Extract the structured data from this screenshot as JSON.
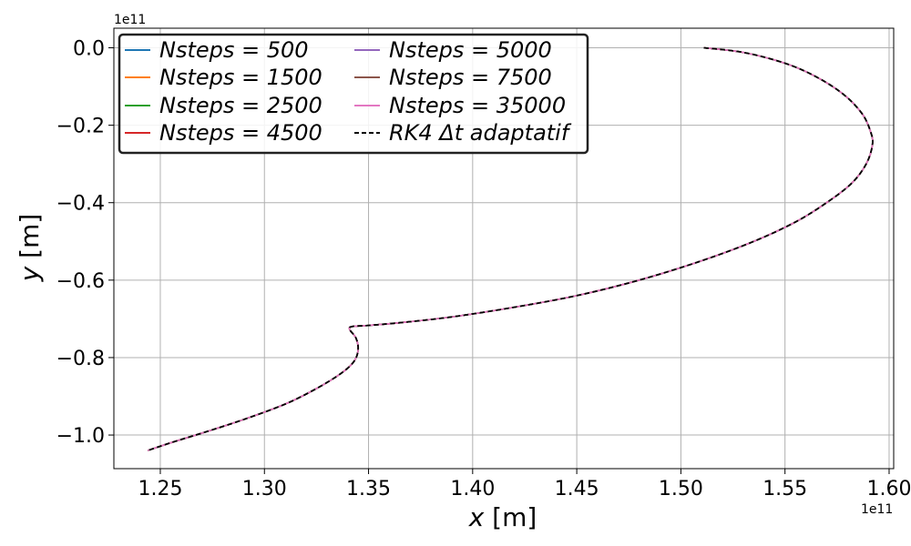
{
  "chart_data": {
    "type": "line",
    "xlabel_var": "x",
    "xlabel_unit": "[m]",
    "ylabel_var": "y",
    "ylabel_unit": "[m]",
    "x_offset_text": "1e11",
    "y_offset_text": "1e11",
    "xlim": [
      1.2277,
      1.6022
    ],
    "ylim": [
      -1.0868,
      0.0505
    ],
    "x_ticks": [
      1.25,
      1.3,
      1.35,
      1.4,
      1.45,
      1.5,
      1.55,
      1.6
    ],
    "x_tick_labels": [
      "1.25",
      "1.30",
      "1.35",
      "1.40",
      "1.45",
      "1.50",
      "1.55",
      "1.60"
    ],
    "y_ticks": [
      0.0,
      -0.2,
      -0.4,
      -0.6,
      -0.8,
      -1.0
    ],
    "y_tick_labels": [
      "0.0",
      "−0.2",
      "−0.4",
      "−0.6",
      "−0.8",
      "−1.0"
    ],
    "grid": true,
    "legend_placement": "top-left",
    "legend_columns": 2,
    "series": [
      {
        "name": "Nsteps = 500",
        "color": "#1f77b4",
        "style": "solid"
      },
      {
        "name": "Nsteps = 1500",
        "color": "#ff7f0e",
        "style": "solid"
      },
      {
        "name": "Nsteps = 2500",
        "color": "#2ca02c",
        "style": "solid"
      },
      {
        "name": "Nsteps = 4500",
        "color": "#d62728",
        "style": "solid"
      },
      {
        "name": "Nsteps = 5000",
        "color": "#9467bd",
        "style": "solid"
      },
      {
        "name": "Nsteps = 7500",
        "color": "#8c564b",
        "style": "solid"
      },
      {
        "name": "Nsteps = 35000",
        "color": "#e377c2",
        "style": "solid"
      },
      {
        "name": "RK4 Δt adaptatif",
        "color": "#000000",
        "style": "dashed"
      }
    ],
    "trajectory": {
      "x": [
        1.511,
        1.53,
        1.55,
        1.565,
        1.578,
        1.587,
        1.591,
        1.592,
        1.589,
        1.582,
        1.57,
        1.555,
        1.535,
        1.51,
        1.48,
        1.45,
        1.42,
        1.39,
        1.365,
        1.35,
        1.342,
        1.341,
        1.344,
        1.345,
        1.343,
        1.337,
        1.325,
        1.31,
        1.29,
        1.27,
        1.255,
        1.244
      ],
      "y": [
        0.0,
        -0.012,
        -0.04,
        -0.075,
        -0.12,
        -0.17,
        -0.215,
        -0.25,
        -0.3,
        -0.35,
        -0.4,
        -0.45,
        -0.5,
        -0.55,
        -0.6,
        -0.64,
        -0.67,
        -0.695,
        -0.71,
        -0.717,
        -0.72,
        -0.728,
        -0.75,
        -0.78,
        -0.81,
        -0.84,
        -0.88,
        -0.92,
        -0.96,
        -0.995,
        -1.02,
        -1.04
      ]
    }
  }
}
